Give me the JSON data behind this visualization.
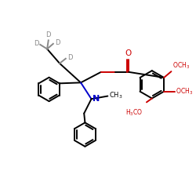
{
  "bg_color": "#ffffff",
  "bond_color": "#000000",
  "nitrogen_color": "#0000cc",
  "oxygen_color": "#cc0000",
  "deuterium_color": "#888888",
  "figsize": [
    2.5,
    2.5
  ],
  "dpi": 100,
  "xlim": [
    0,
    10
  ],
  "ylim": [
    0,
    10
  ]
}
